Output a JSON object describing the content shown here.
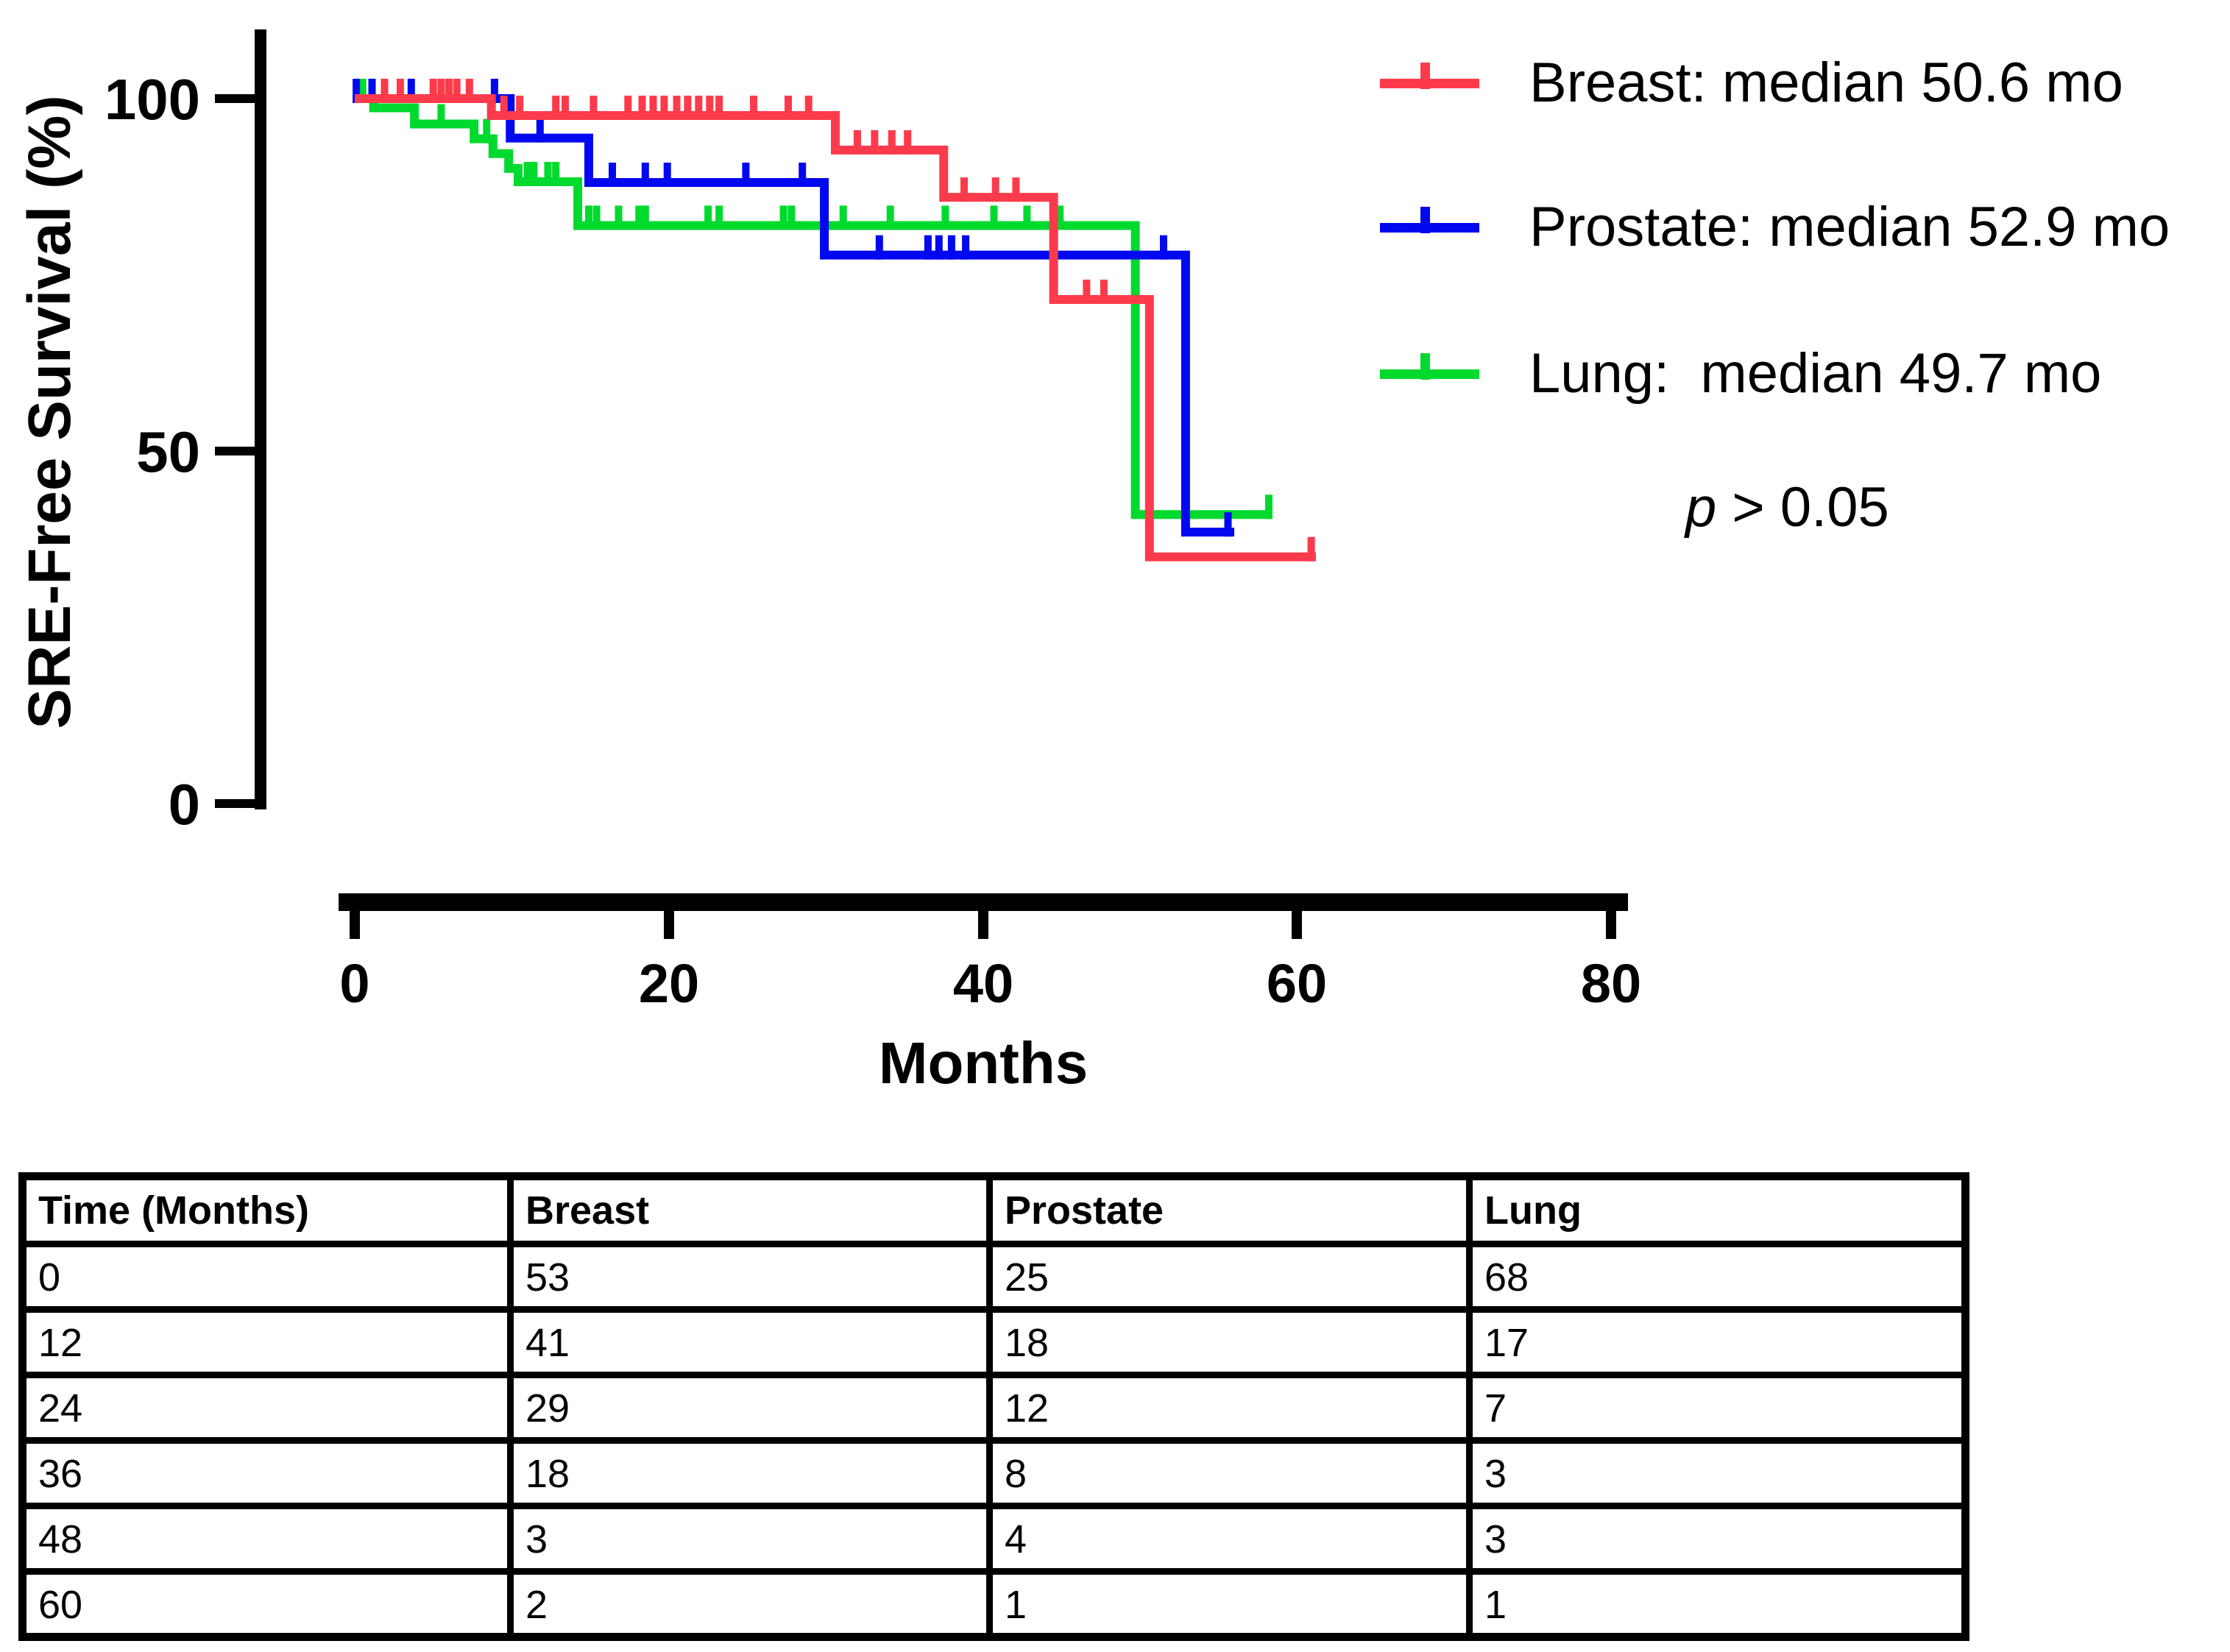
{
  "chart_data": {
    "type": "line",
    "subtype": "kaplan-meier-step",
    "title": "",
    "xlabel": "Months",
    "ylabel": "SRE-Free Survival (%)",
    "xlim": [
      0,
      80
    ],
    "ylim": [
      0,
      100
    ],
    "xtick_vals": [
      0,
      20,
      40,
      60,
      80
    ],
    "ytick_vals": [
      100,
      50,
      0
    ],
    "xticks": [
      "0",
      "20",
      "40",
      "60",
      "80"
    ],
    "yticks": [
      "100",
      "50",
      "0"
    ],
    "grid": "off",
    "legend_position": "right",
    "p_parts": [
      "p",
      " > 0.05"
    ],
    "p_text": "p > 0.05",
    "series": [
      {
        "name": "Breast",
        "legend_label": "Breast: median 50.6 mo",
        "median_months": 50.6,
        "color": "#FB3B4B",
        "steps": [
          [
            0,
            100
          ],
          [
            8.7,
            97.6
          ],
          [
            30.6,
            92.7
          ],
          [
            37.5,
            86
          ],
          [
            44.5,
            71.5
          ],
          [
            50.6,
            35
          ]
        ],
        "end_time": 61.2,
        "censor_times": [
          1.9,
          2.9,
          5.0,
          5.5,
          6.0,
          6.5,
          7.3,
          9.5,
          10.5,
          12.8,
          13.4,
          15.2,
          17.4,
          18.3,
          19.0,
          19.7,
          20.5,
          21.2,
          21.9,
          22.6,
          23.2,
          25.4,
          27.6,
          28.9,
          32.0,
          33.1,
          34.2,
          35.2,
          38.8,
          40.8,
          42.1,
          46.6,
          47.7,
          60.9
        ]
      },
      {
        "name": "Prostate",
        "legend_label": "Prostate: median 52.9 mo",
        "median_months": 52.9,
        "color": "#0008F0",
        "steps": [
          [
            0,
            100
          ],
          [
            9.9,
            94.4
          ],
          [
            14.9,
            88.1
          ],
          [
            29.9,
            77.8
          ],
          [
            52.9,
            38.5
          ]
        ],
        "end_time": 56.0,
        "censor_times": [
          0.1,
          1.1,
          3.6,
          8.9,
          11.8,
          16.4,
          18.5,
          19.9,
          24.9,
          28.5,
          33.4,
          36.5,
          37.2,
          38.0,
          38.9,
          51.5,
          55.6
        ]
      },
      {
        "name": "Lung",
        "legend_label": "Lung:  median 49.7 mo",
        "median_months": 49.7,
        "color": "#00DA2E",
        "steps": [
          [
            0,
            100
          ],
          [
            1.2,
            98.7
          ],
          [
            3.8,
            96.4
          ],
          [
            7.6,
            94.3
          ],
          [
            8.8,
            92.2
          ],
          [
            9.8,
            90.1
          ],
          [
            10.4,
            88.2
          ],
          [
            14.2,
            82
          ],
          [
            49.7,
            41
          ]
        ],
        "end_time": 58.4,
        "censor_times": [
          0.5,
          5.5,
          8.4,
          11.0,
          11.4,
          12.3,
          12.8,
          14.9,
          15.4,
          16.8,
          18.1,
          18.5,
          22.5,
          23.2,
          27.3,
          27.8,
          31.1,
          34.1,
          37.6,
          40.7,
          42.8,
          44.9,
          58.2
        ]
      }
    ]
  },
  "risk_table": {
    "headers": [
      "Time (Months)",
      "Breast",
      "Prostate",
      "Lung"
    ],
    "rows": [
      [
        "0",
        "53",
        "25",
        "68"
      ],
      [
        "12",
        "41",
        "18",
        "17"
      ],
      [
        "24",
        "29",
        "12",
        "7"
      ],
      [
        "36",
        "18",
        "8",
        "3"
      ],
      [
        "48",
        "3",
        "4",
        "3"
      ],
      [
        "60",
        "2",
        "1",
        "1"
      ]
    ]
  }
}
